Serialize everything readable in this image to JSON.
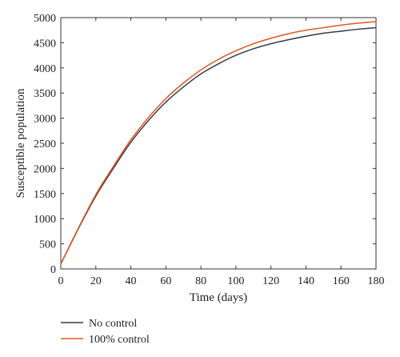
{
  "chart_data": {
    "type": "line",
    "title": "",
    "xlabel": "Time (days)",
    "ylabel": "Susceptible population",
    "xlim": [
      0,
      180
    ],
    "ylim": [
      0,
      5000
    ],
    "xticks": [
      0,
      20,
      40,
      60,
      80,
      100,
      120,
      140,
      160,
      180
    ],
    "yticks": [
      0,
      500,
      1000,
      1500,
      2000,
      2500,
      3000,
      3500,
      4000,
      4500,
      5000
    ],
    "grid": false,
    "legend_position": "bottom-left, below plot",
    "x": [
      0,
      10,
      20,
      30,
      40,
      50,
      60,
      70,
      80,
      90,
      100,
      110,
      120,
      130,
      140,
      150,
      160,
      170,
      180
    ],
    "series": [
      {
        "name": "No control",
        "color": "#3a3a4a",
        "values": [
          100,
          800,
          1450,
          2000,
          2520,
          2950,
          3320,
          3620,
          3880,
          4080,
          4250,
          4380,
          4480,
          4560,
          4630,
          4690,
          4730,
          4770,
          4800
        ]
      },
      {
        "name": "100% control",
        "color": "#e0571e",
        "values": [
          100,
          810,
          1480,
          2040,
          2570,
          3010,
          3390,
          3700,
          3960,
          4170,
          4340,
          4480,
          4590,
          4680,
          4750,
          4800,
          4850,
          4890,
          4920
        ]
      }
    ]
  }
}
